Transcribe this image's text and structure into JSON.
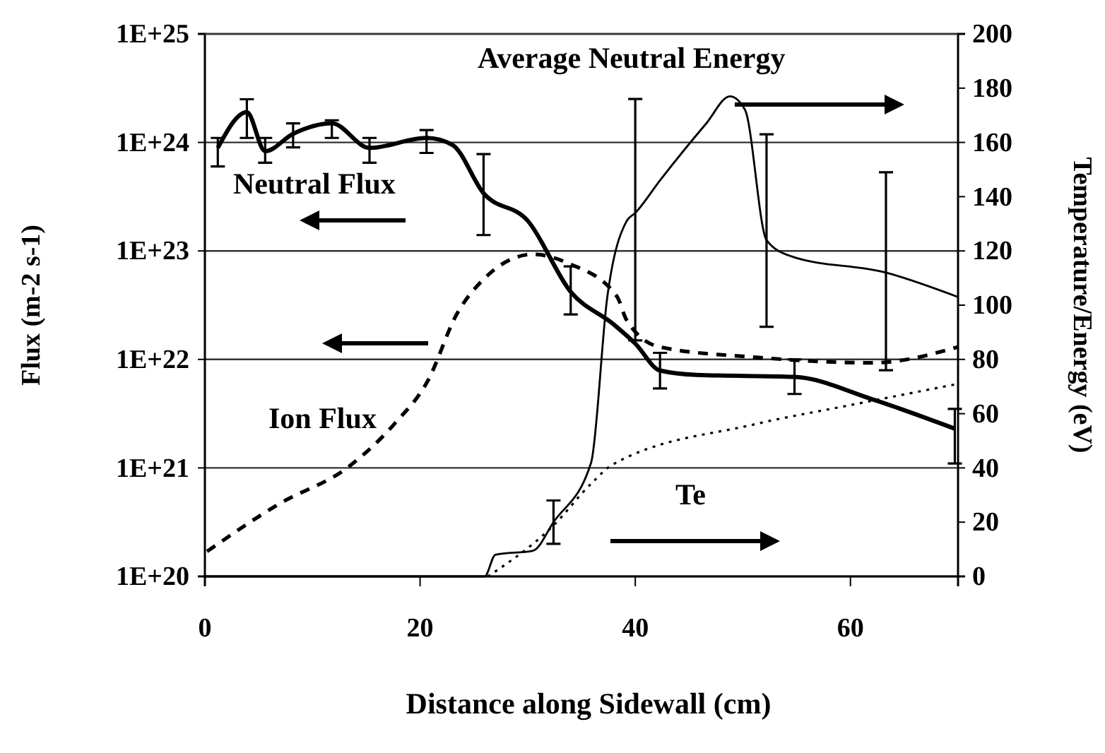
{
  "chart_data": {
    "type": "line",
    "xlabel": "Distance along Sidewall (cm)",
    "ylabel": "Flux (m-2 s-1)",
    "y2label": "Temperature/Energy (eV)",
    "xlim": [
      0,
      70
    ],
    "xticks": [
      0,
      20,
      40,
      60
    ],
    "log": "y",
    "ylim": [
      1e+20,
      1e+25
    ],
    "yticks": [
      {
        "value": 1e+20,
        "label": "1E+20"
      },
      {
        "value": 1e+21,
        "label": "1E+21"
      },
      {
        "value": 1e+22,
        "label": "1E+22"
      },
      {
        "value": 1e+23,
        "label": "1E+23"
      },
      {
        "value": 1e+24,
        "label": "1E+24"
      },
      {
        "value": 1e+25,
        "label": "1E+25"
      }
    ],
    "y2lim": [
      0,
      200
    ],
    "y2ticks": [
      0,
      20,
      40,
      60,
      80,
      100,
      120,
      140,
      160,
      180,
      200
    ],
    "grid": "y",
    "marker": "none",
    "series": [
      {
        "name": "Neutral Flux",
        "color": "#000000",
        "line_style": "solid",
        "x": [
          1.2,
          3.9,
          5.6,
          8.2,
          11.8,
          15.3,
          20.6,
          23,
          25.9,
          30,
          34,
          38,
          40,
          42.3,
          45.7,
          54.8,
          62,
          69.7
        ],
        "values": [
          8.9e+23,
          1.9e+24,
          8.3e+23,
          1.2e+24,
          1.5e+24,
          8.9e+23,
          1.1e+24,
          9.5e+23,
          3.4e+23,
          1.9e+23,
          4.2e+22,
          2.1e+22,
          1.4e+22,
          7.9e+21,
          7.2e+21,
          6.9e+21,
          4.3e+21,
          2.3e+21
        ],
        "errors": [
          [
            6e+23,
            1.1e+24
          ],
          [
            1.1e+24,
            2.5e+24
          ],
          [
            6.5e+23,
            1.1e+24
          ],
          [
            9e+23,
            1.5e+24
          ],
          [
            1.1e+24,
            1.6e+24
          ],
          [
            6.5e+23,
            1.1e+24
          ],
          [
            8e+23,
            1.3e+24
          ],
          null,
          [
            1.4e+23,
            7.8e+23
          ],
          null,
          [
            2.6e+22,
            7.2e+22
          ],
          null,
          null,
          [
            5.4e+21,
            1.15e+22
          ],
          null,
          [
            4.8e+21,
            1e+22
          ],
          null,
          [
            1.1e+21,
            3.5e+21
          ]
        ]
      },
      {
        "name": "Ion Flux",
        "color": "#000000",
        "line_style": "dashed",
        "x": [
          0.2,
          6.8,
          13.5,
          17.7,
          20.7,
          23.4,
          26,
          30.5,
          33.9,
          38.3,
          39.2,
          42.3,
          51,
          62,
          70
        ],
        "values": [
          1.7e+20,
          4.6e+20,
          1.05e+21,
          2.6e+21,
          6.3e+21,
          2.6e+22,
          5.6e+22,
          9.3e+22,
          7.6e+22,
          3.8e+22,
          2.3e+22,
          1.3e+22,
          1.05e+22,
          9.3e+21,
          1.3e+22
        ]
      },
      {
        "name": "Te",
        "color": "#000000",
        "line_style": "dotted",
        "axis": "y2",
        "x": [
          26.3,
          32.2,
          36.1,
          37.8,
          51,
          59.8,
          70
        ],
        "values": [
          0,
          18,
          35,
          41,
          56,
          63,
          71
        ]
      },
      {
        "name": "Average Neutral Energy",
        "color": "#000000",
        "line_style": "solid",
        "axis": "y2",
        "x": [
          0,
          26,
          27,
          30.5,
          32.4,
          35.9,
          37.4,
          39.2,
          40,
          42.3,
          46.6,
          48.8,
          50.2,
          52.2,
          54.5,
          63.3,
          70
        ],
        "values": [
          0,
          0,
          8,
          9.5,
          20,
          42,
          103,
          131,
          134,
          146,
          167,
          177,
          172,
          124,
          118,
          112,
          103
        ],
        "errors": [
          null,
          null,
          null,
          null,
          [
            12,
            28
          ],
          null,
          null,
          null,
          [
            87,
            176
          ],
          null,
          null,
          null,
          null,
          [
            92,
            163
          ],
          null,
          [
            76,
            149
          ],
          null
        ]
      }
    ]
  }
}
